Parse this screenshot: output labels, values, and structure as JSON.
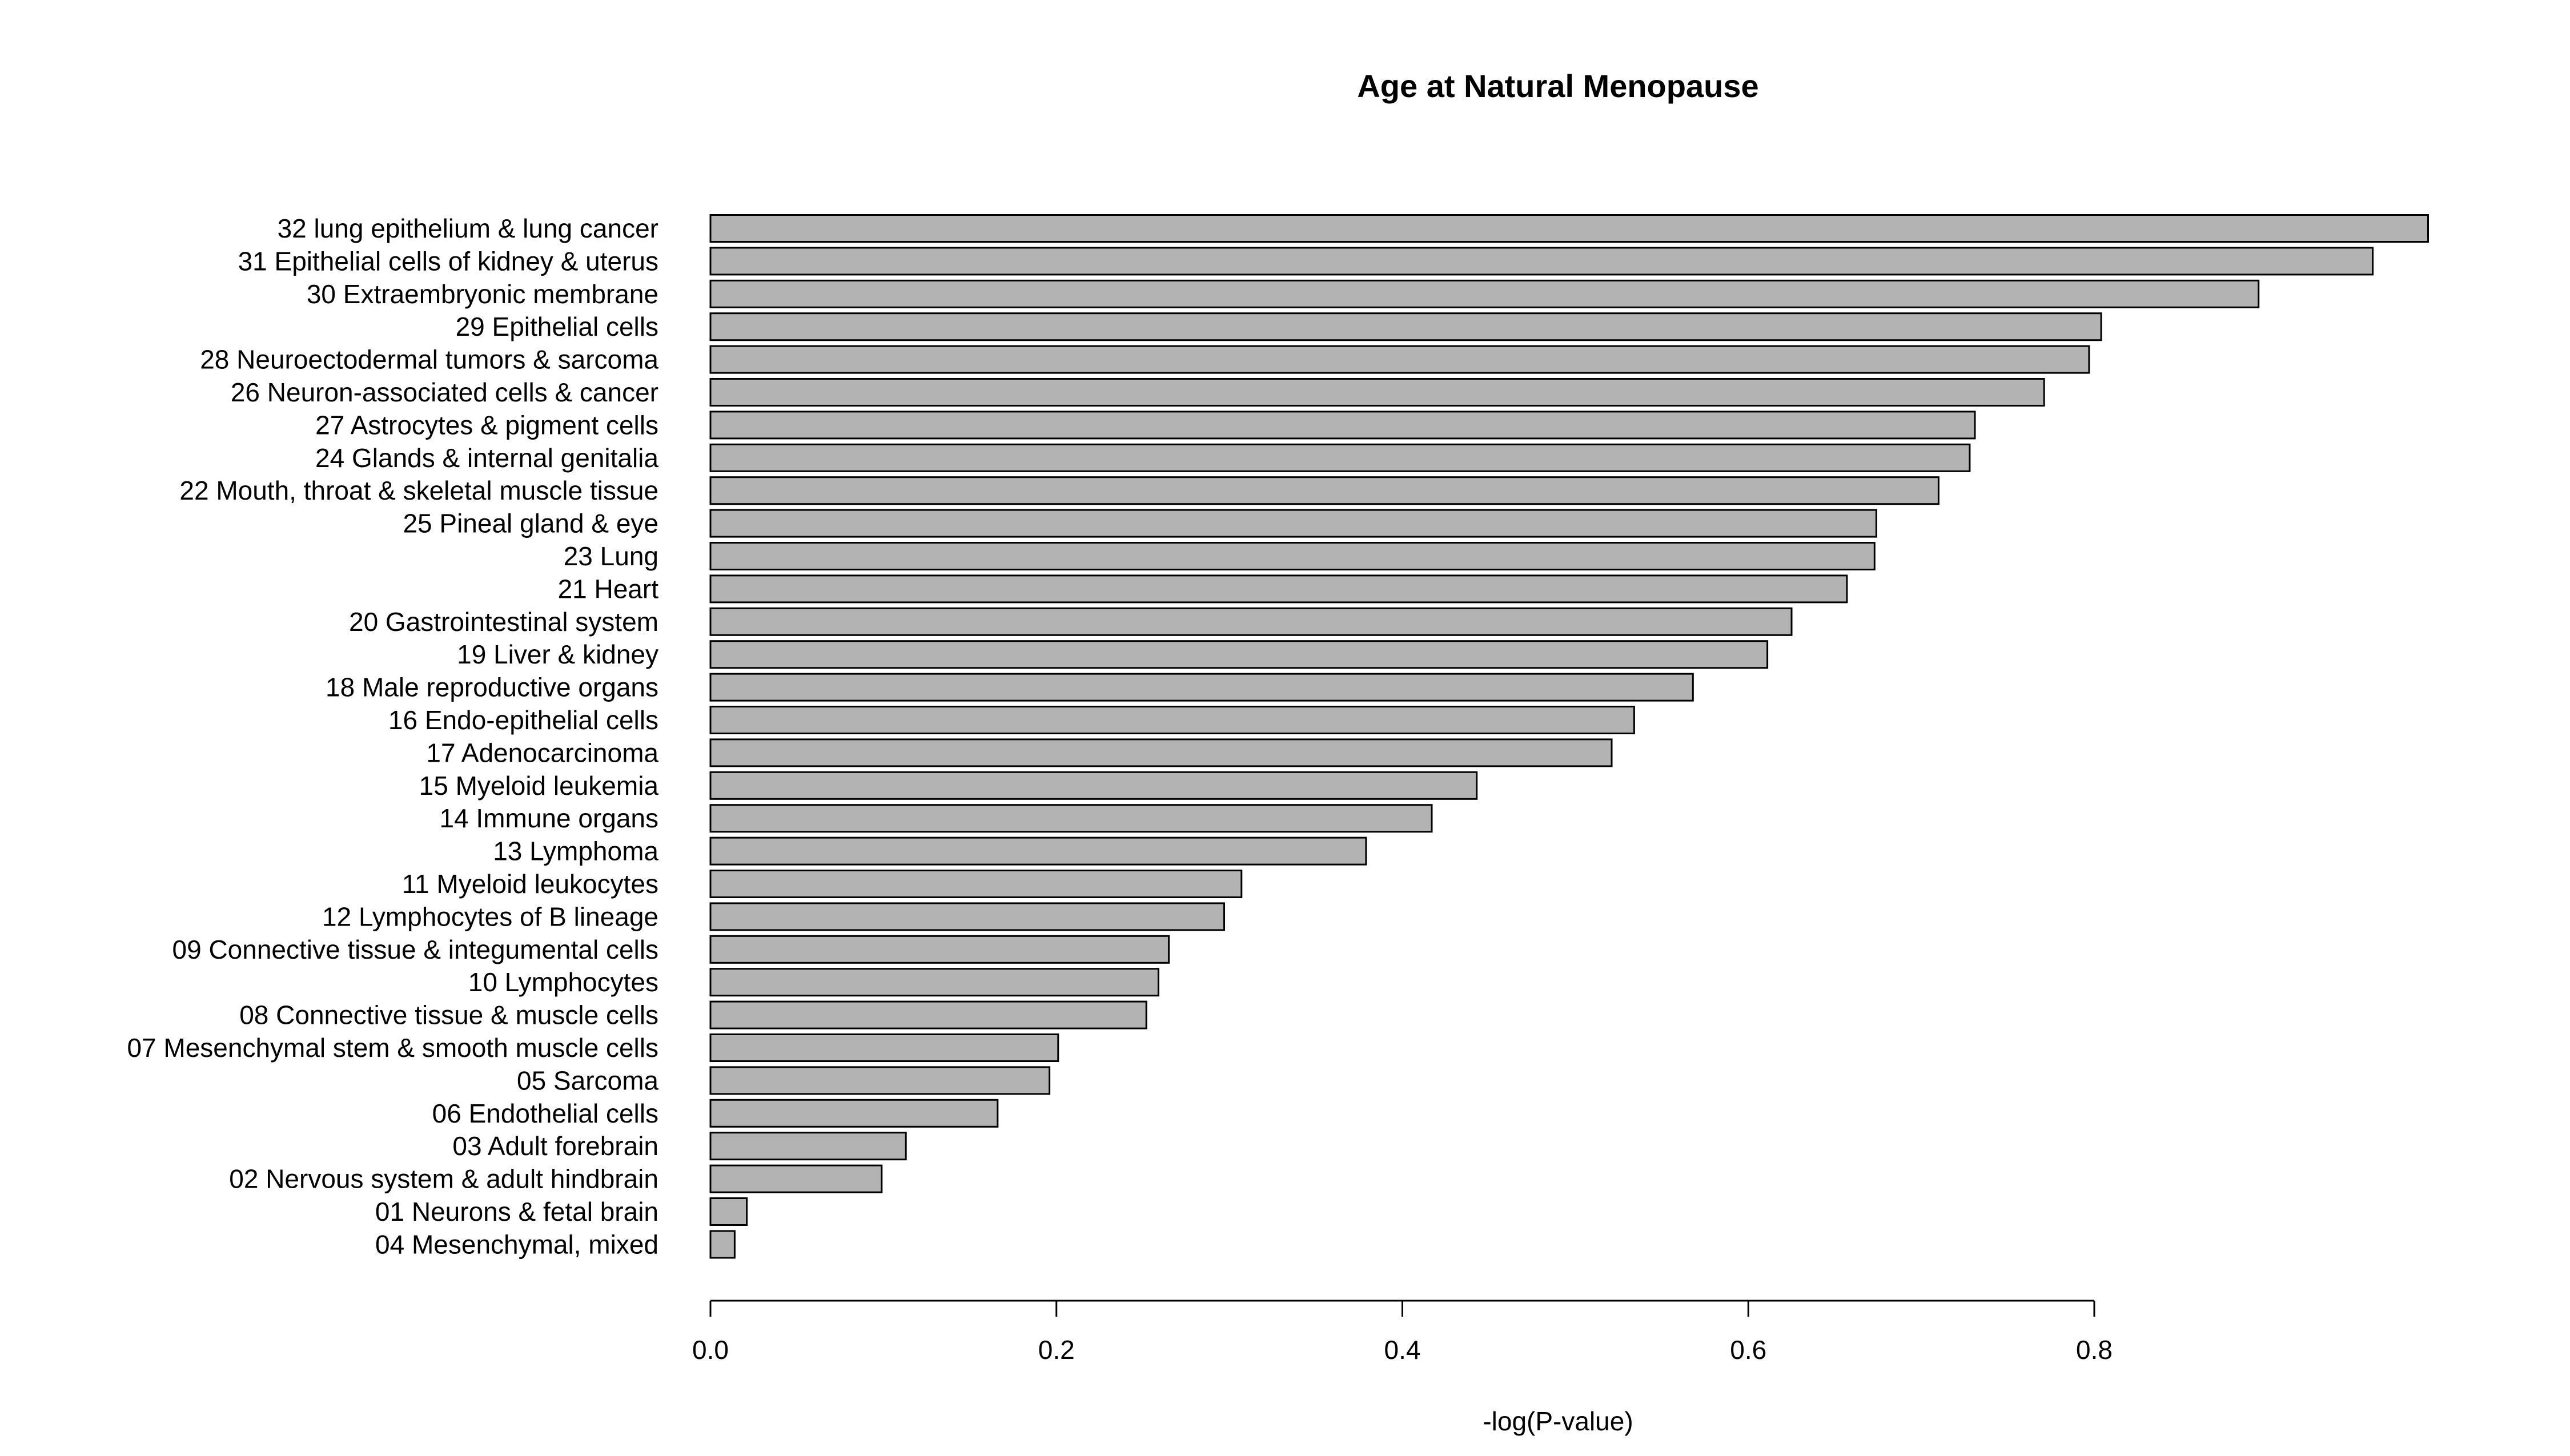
{
  "chart_data": {
    "type": "bar",
    "orientation": "horizontal",
    "title": "Age at Natural Menopause",
    "xlabel": "-log(P-value)",
    "ylabel": "",
    "xlim": [
      0,
      1.0
    ],
    "xticks": [
      0.0,
      0.2,
      0.4,
      0.6,
      0.8
    ],
    "xtick_labels": [
      "0.0",
      "0.2",
      "0.4",
      "0.6",
      "0.8"
    ],
    "grid": false,
    "bar_color": "#b3b3b3",
    "edge_color": "#000000",
    "categories": [
      "32 lung epithelium & lung cancer",
      "31 Epithelial cells of kidney & uterus",
      "30 Extraembryonic membrane",
      "29 Epithelial cells",
      "28 Neuroectodermal tumors & sarcoma",
      "26 Neuron-associated cells & cancer",
      "27 Astrocytes & pigment cells",
      "24 Glands & internal genitalia",
      "22 Mouth, throat & skeletal muscle tissue",
      "25 Pineal gland & eye",
      "23 Lung",
      "21 Heart",
      "20 Gastrointestinal system",
      "19 Liver & kidney",
      "18 Male reproductive organs",
      "16 Endo-epithelial cells",
      "17 Adenocarcinoma",
      "15 Myeloid leukemia",
      "14 Immune organs",
      "13 Lymphoma",
      "11 Myeloid leukocytes",
      "12 Lymphocytes of B lineage",
      "09 Connective tissue & integumental cells",
      "10 Lymphocytes",
      "08 Connective tissue & muscle cells",
      "07 Mesenchymal stem & smooth muscle cells",
      "05 Sarcoma",
      "06 Endothelial cells",
      "03 Adult forebrain",
      "02 Nervous system & adult hindbrain",
      "01 Neurons & fetal brain",
      "04 Mesenchymal, mixed"
    ],
    "values": [
      0.993,
      0.961,
      0.895,
      0.804,
      0.797,
      0.771,
      0.731,
      0.728,
      0.71,
      0.674,
      0.673,
      0.657,
      0.625,
      0.611,
      0.568,
      0.534,
      0.521,
      0.443,
      0.417,
      0.379,
      0.307,
      0.297,
      0.265,
      0.259,
      0.252,
      0.201,
      0.196,
      0.166,
      0.113,
      0.099,
      0.021,
      0.014
    ]
  }
}
